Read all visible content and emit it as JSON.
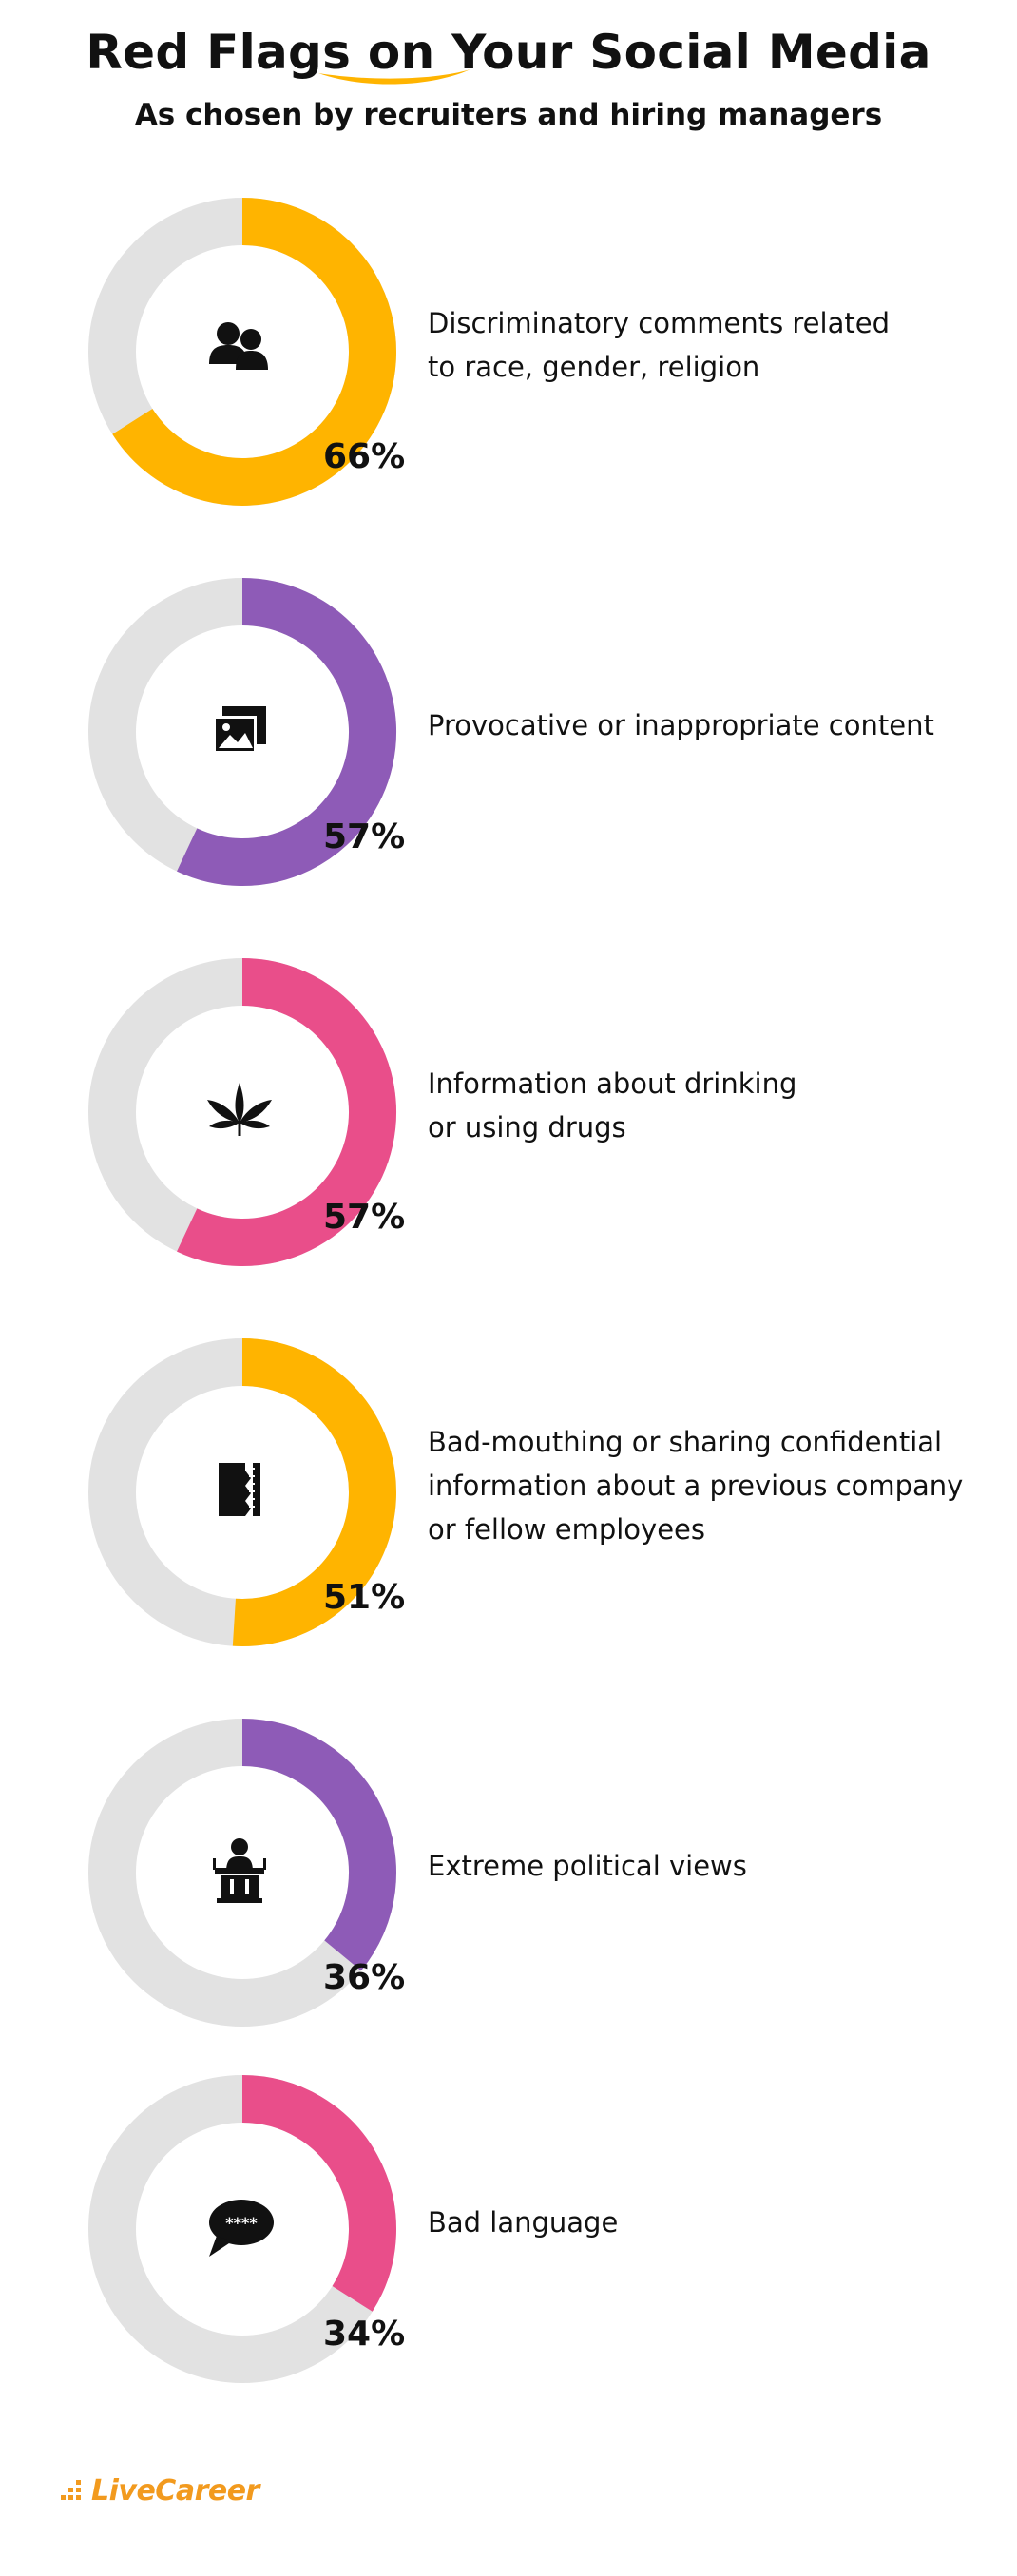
{
  "header": {
    "title": "Red Flags on Your Social Media",
    "subtitle": "As chosen by recruiters and hiring managers"
  },
  "colors": {
    "orange": "#ffb400",
    "purple": "#8e5bb7",
    "pink": "#e94e8a",
    "track": "#e2e2e2"
  },
  "chart_data": {
    "type": "donut",
    "title": "Red Flags on Your Social Media",
    "subtitle": "As chosen by recruiters and hiring managers",
    "unit": "%",
    "items": [
      {
        "label": "Discriminatory comments related to race, gender, religion",
        "label_lines": [
          "Discriminatory comments related",
          "to race, gender, religion"
        ],
        "value": 66,
        "value_text": "66%",
        "color": "#ffb400",
        "icon": "people-icon"
      },
      {
        "label": "Provocative or inappropriate content",
        "label_lines": [
          "Provocative or inappropriate content"
        ],
        "value": 57,
        "value_text": "57%",
        "color": "#8e5bb7",
        "icon": "images-icon"
      },
      {
        "label": "Information about drinking or using drugs",
        "label_lines": [
          "Information about drinking",
          "or using drugs"
        ],
        "value": 57,
        "value_text": "57%",
        "color": "#e94e8a",
        "icon": "cannabis-leaf-icon"
      },
      {
        "label": "Bad-mouthing or sharing confidential information about a previous company or fellow employees",
        "label_lines": [
          "Bad-mouthing or sharing confidential",
          "information about a previous company",
          "or fellow employees"
        ],
        "value": 51,
        "value_text": "51%",
        "color": "#ffb400",
        "icon": "shredded-document-icon"
      },
      {
        "label": "Extreme political views",
        "label_lines": [
          "Extreme political views"
        ],
        "value": 36,
        "value_text": "36%",
        "color": "#8e5bb7",
        "icon": "podium-speaker-icon"
      },
      {
        "label": "Bad language",
        "label_lines": [
          "Bad language"
        ],
        "value": 34,
        "value_text": "34%",
        "color": "#e94e8a",
        "icon": "speech-bubble-censored-icon"
      }
    ]
  },
  "bubble_text": "****",
  "footer": {
    "brand": "LiveCareer",
    "brand_color": "#f29a1e",
    "logo_icon": "livecareer-dots-icon"
  }
}
